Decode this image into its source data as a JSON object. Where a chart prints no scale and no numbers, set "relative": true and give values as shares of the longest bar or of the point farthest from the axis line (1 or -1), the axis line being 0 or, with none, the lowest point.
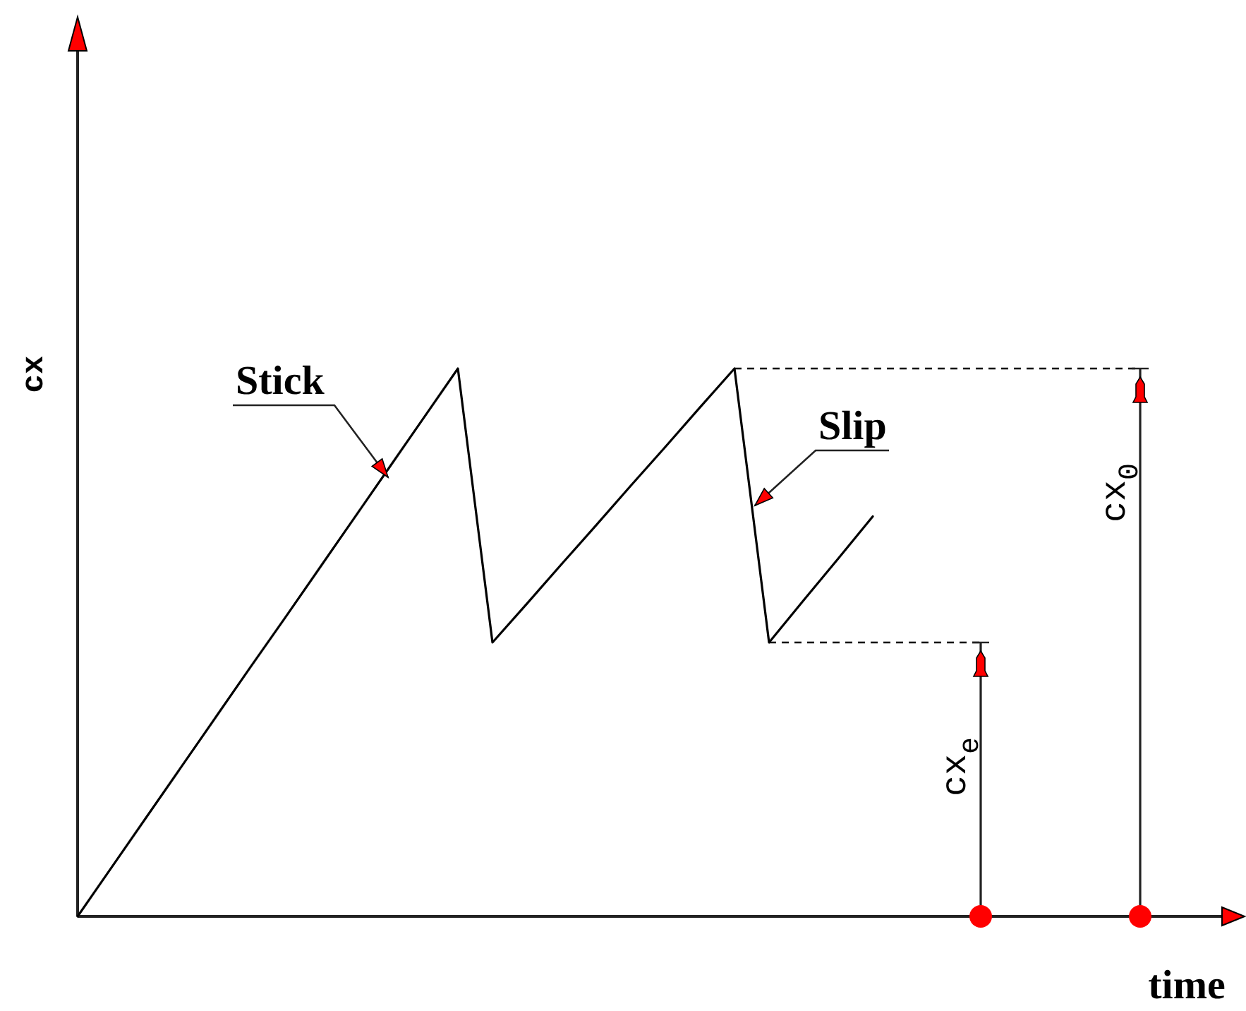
{
  "chart_data": {
    "type": "line",
    "relative": true,
    "xlabel": "time",
    "ylabel": "cx",
    "categories": [
      null,
      null,
      null,
      null,
      null,
      null,
      null,
      null,
      null,
      null,
      null,
      null,
      null,
      null,
      null,
      null,
      null,
      null,
      null,
      null,
      null,
      null,
      null,
      null,
      null,
      null,
      null,
      null,
      null,
      null,
      null,
      null,
      null,
      null
    ],
    "series": [
      {
        "color": "#000000",
        "values": [
          0,
          0.091,
          0.182,
          0.273,
          0.364,
          0.455,
          0.545,
          0.636,
          0.727,
          0.818,
          0.909,
          1,
          0.5,
          0.571,
          0.643,
          0.714,
          0.786,
          0.857,
          0.929,
          1,
          0.5,
          0.577,
          0.653,
          0.73,
          null,
          null,
          null,
          null,
          null,
          null,
          null,
          null,
          null,
          null
        ]
      }
    ],
    "ref_lines": [
      {
        "axis": "y",
        "value": 1,
        "label": "cx$_{0}$",
        "line_style": "dashed",
        "color": "#000000"
      },
      {
        "axis": "y",
        "value": 0.5,
        "label": "cx$_{e}$",
        "line_style": "dashed",
        "color": "#000000"
      }
    ],
    "annotations": [
      "Stick",
      "Slip"
    ]
  }
}
